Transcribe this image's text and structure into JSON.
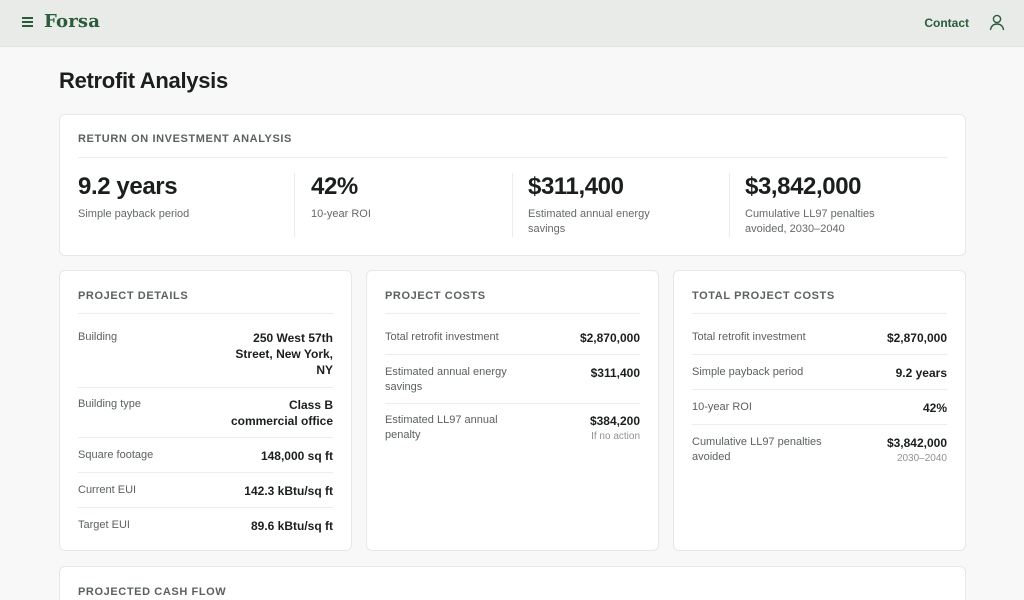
{
  "app": {
    "brand": "Forsa",
    "contact_label": "Contact"
  },
  "page": {
    "title": "Retrofit Analysis"
  },
  "roi": {
    "title": "RETURN ON INVESTMENT ANALYSIS",
    "kpis": [
      {
        "value": "9.2 years",
        "label": "Simple payback period"
      },
      {
        "value": "42%",
        "label": "10-year ROI"
      },
      {
        "value": "$311,400",
        "label": "Estimated annual energy savings"
      },
      {
        "value": "$3,842,000",
        "label": "Cumulative LL97 penalties avoided, 2030–2040"
      }
    ]
  },
  "project_details": {
    "title": "PROJECT DETAILS",
    "rows": [
      {
        "label": "Building",
        "value": "250 West 57th Street, New York, NY"
      },
      {
        "label": "Building type",
        "value": "Class B commercial office"
      },
      {
        "label": "Square footage",
        "value": "148,000 sq ft"
      },
      {
        "label": "Current EUI",
        "value": "142.3 kBtu/sq ft"
      },
      {
        "label": "Target EUI",
        "value": "89.6 kBtu/sq ft"
      }
    ]
  },
  "project_costs": {
    "title": "PROJECT COSTS",
    "rows": [
      {
        "label": "Total retrofit investment",
        "value": "$2,870,000"
      },
      {
        "label": "Estimated annual energy savings",
        "value": "$311,400"
      },
      {
        "label": "Estimated LL97 annual penalty",
        "value": "$384,200",
        "note": "If no action"
      }
    ]
  },
  "total_costs": {
    "title": "TOTAL PROJECT COSTS",
    "rows": [
      {
        "label": "Total retrofit investment",
        "value": "$2,870,000"
      },
      {
        "label": "Simple payback period",
        "value": "9.2 years"
      },
      {
        "label": "10-year ROI",
        "value": "42%"
      },
      {
        "label": "Cumulative LL97 penalties avoided",
        "value": "$3,842,000",
        "note": "2030–2040"
      }
    ]
  },
  "cash_flow": {
    "title": "PROJECTED CASH FLOW"
  },
  "icons": {
    "menu": "menu-icon",
    "user": "user-icon"
  },
  "colors": {
    "brand": "#2a5c3a",
    "topbar": "#e8ebe8",
    "background": "#f7f8f7"
  }
}
